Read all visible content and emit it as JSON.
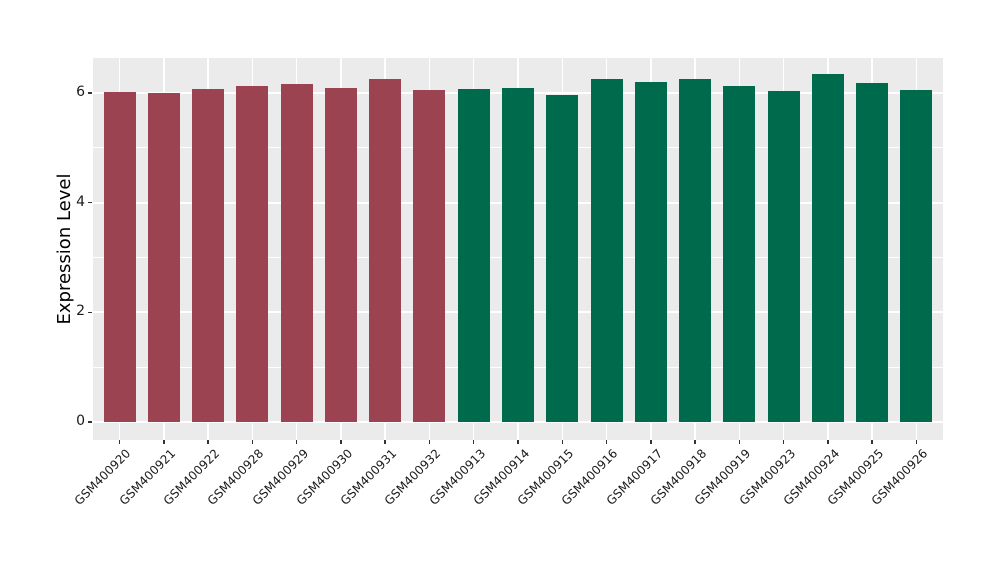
{
  "chart_data": {
    "type": "bar",
    "title": "",
    "xlabel": "",
    "ylabel": "Expression Level",
    "categories": [
      "GSM400920",
      "GSM400921",
      "GSM400922",
      "GSM400928",
      "GSM400929",
      "GSM400930",
      "GSM400931",
      "GSM400932",
      "GSM400913",
      "GSM400914",
      "GSM400915",
      "GSM400916",
      "GSM400917",
      "GSM400918",
      "GSM400919",
      "GSM400923",
      "GSM400924",
      "GSM400925",
      "GSM400926"
    ],
    "values": [
      6.02,
      6.01,
      6.07,
      6.13,
      6.17,
      6.09,
      6.25,
      6.05,
      6.08,
      6.1,
      5.96,
      6.25,
      6.2,
      6.25,
      6.13,
      6.04,
      6.35,
      6.19,
      6.06
    ],
    "bar_colors": [
      "#9B4351",
      "#9B4351",
      "#9B4351",
      "#9B4351",
      "#9B4351",
      "#9B4351",
      "#9B4351",
      "#9B4351",
      "#006A4D",
      "#006A4D",
      "#006A4D",
      "#006A4D",
      "#006A4D",
      "#006A4D",
      "#006A4D",
      "#006A4D",
      "#006A4D",
      "#006A4D",
      "#006A4D"
    ],
    "group_colors": {
      "first_group": "#9B4351",
      "second_group": "#006A4D"
    },
    "yticks": [
      0,
      2,
      4,
      6
    ],
    "yticks_minor": [
      1,
      3,
      5
    ],
    "ylim": [
      -0.33,
      6.64
    ],
    "grid": true,
    "legend": false,
    "panel_bg": "#EBEBEB",
    "grid_color": "#FFFFFF",
    "tick_color": "#333333",
    "text_color": "#1A1A1A"
  }
}
